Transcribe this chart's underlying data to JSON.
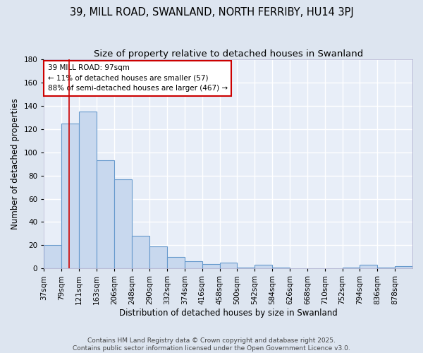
{
  "title1": "39, MILL ROAD, SWANLAND, NORTH FERRIBY, HU14 3PJ",
  "title2": "Size of property relative to detached houses in Swanland",
  "xlabel": "Distribution of detached houses by size in Swanland",
  "ylabel": "Number of detached properties",
  "footer": "Contains HM Land Registry data © Crown copyright and database right 2025.\nContains public sector information licensed under the Open Government Licence v3.0.",
  "bin_edges": [
    37,
    79,
    121,
    163,
    206,
    248,
    290,
    332,
    374,
    416,
    458,
    500,
    542,
    584,
    626,
    668,
    710,
    752,
    794,
    836,
    878,
    920
  ],
  "bar_heights": [
    20,
    125,
    135,
    93,
    77,
    28,
    19,
    10,
    6,
    4,
    5,
    1,
    3,
    1,
    0,
    0,
    0,
    1,
    3,
    1,
    2
  ],
  "bar_color": "#c8d8ee",
  "bar_edge_color": "#6699cc",
  "bar_edge_width": 0.8,
  "red_line_x": 97,
  "red_line_color": "#cc0000",
  "annotation_text": "39 MILL ROAD: 97sqm\n← 11% of detached houses are smaller (57)\n88% of semi-detached houses are larger (467) →",
  "annotation_box_color": "white",
  "annotation_border_color": "#cc0000",
  "ylim": [
    0,
    180
  ],
  "yticks": [
    0,
    20,
    40,
    60,
    80,
    100,
    120,
    140,
    160,
    180
  ],
  "bg_color": "#dde5f0",
  "plot_bg_color": "#e8eef8",
  "grid_color": "white",
  "title_fontsize": 10.5,
  "subtitle_fontsize": 9.5,
  "axis_label_fontsize": 8.5,
  "tick_fontsize": 7.5,
  "annotation_fontsize": 7.5,
  "footer_fontsize": 6.5
}
